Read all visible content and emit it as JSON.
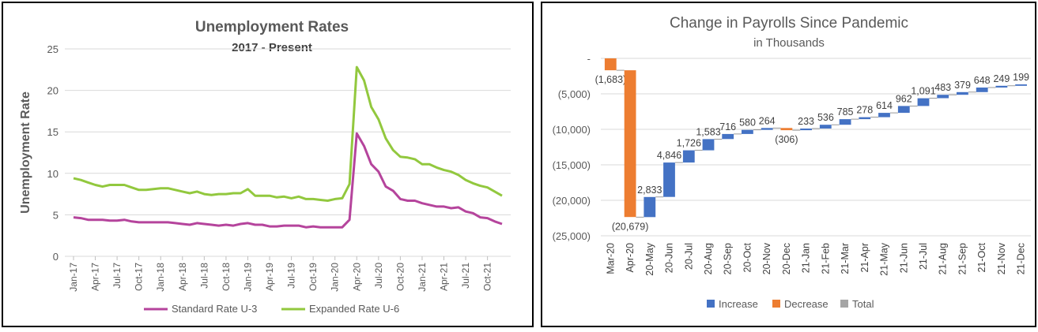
{
  "chart_data": [
    {
      "type": "line",
      "title": "Unemployment Rates",
      "subtitle": "2017 - Present",
      "ylabel": "Unemployment Rate",
      "xlabel": "",
      "ylim": [
        0,
        25
      ],
      "yticks": [
        "0",
        "5",
        "10",
        "15",
        "20",
        "25"
      ],
      "x_tick_labels": [
        "Jan-17",
        "Apr-17",
        "Jul-17",
        "Oct-17",
        "Jan-18",
        "Apr-18",
        "Jul-18",
        "Oct-18",
        "Jan-19",
        "Apr-19",
        "Jul-19",
        "Oct-19",
        "Jan-20",
        "Apr-20",
        "Jul-20",
        "Oct-20",
        "Jan-21",
        "Apr-21",
        "Jul-21",
        "Oct-21"
      ],
      "x_start": "Jan-17",
      "x_end": "Dec-21",
      "grid": true,
      "legend": "bottom",
      "series": [
        {
          "name": "Standard Rate U-3",
          "color": "#b5449c",
          "values": [
            4.7,
            4.6,
            4.4,
            4.4,
            4.4,
            4.3,
            4.3,
            4.4,
            4.2,
            4.1,
            4.1,
            4.1,
            4.1,
            4.1,
            4.0,
            3.9,
            3.8,
            4.0,
            3.9,
            3.8,
            3.7,
            3.8,
            3.7,
            3.9,
            4.0,
            3.8,
            3.8,
            3.6,
            3.6,
            3.7,
            3.7,
            3.7,
            3.5,
            3.6,
            3.5,
            3.5,
            3.5,
            3.5,
            4.4,
            14.8,
            13.3,
            11.1,
            10.2,
            8.4,
            7.9,
            6.9,
            6.7,
            6.7,
            6.4,
            6.2,
            6.0,
            6.0,
            5.8,
            5.9,
            5.4,
            5.2,
            4.7,
            4.6,
            4.2,
            3.9
          ]
        },
        {
          "name": "Expanded Rate U-6",
          "color": "#92c83e",
          "values": [
            9.4,
            9.2,
            8.9,
            8.6,
            8.4,
            8.6,
            8.6,
            8.6,
            8.3,
            8.0,
            8.0,
            8.1,
            8.2,
            8.2,
            8.0,
            7.8,
            7.6,
            7.8,
            7.5,
            7.4,
            7.5,
            7.5,
            7.6,
            7.6,
            8.1,
            7.3,
            7.3,
            7.3,
            7.1,
            7.2,
            7.0,
            7.2,
            6.9,
            6.9,
            6.8,
            6.7,
            6.9,
            7.0,
            8.7,
            22.8,
            21.2,
            18.0,
            16.5,
            14.2,
            12.8,
            12.0,
            11.9,
            11.7,
            11.1,
            11.1,
            10.7,
            10.4,
            10.2,
            9.8,
            9.2,
            8.8,
            8.5,
            8.3,
            7.8,
            7.3
          ]
        }
      ]
    },
    {
      "type": "waterfall",
      "title": "Change in Payrolls Since Pandemic",
      "subtitle": "in Thousands",
      "xlabel": "",
      "ylabel": "",
      "ylim": [
        -25000,
        0
      ],
      "yticks": [
        "-",
        "(5,000)",
        "(10,000)",
        "(15,000)",
        "(20,000)",
        "(25,000)"
      ],
      "grid": true,
      "legend": "bottom",
      "categories": [
        "Mar-20",
        "Apr-20",
        "20-May",
        "20-Jun",
        "20-Jul",
        "20-Aug",
        "20-Sep",
        "20-Oct",
        "20-Nov",
        "20-Dec",
        "21-Jan",
        "21-Feb",
        "21-Mar",
        "21-Apr",
        "21-May",
        "21-Jun",
        "21-Jul",
        "21-Aug",
        "21-Sep",
        "21-Oct",
        "21-Nov",
        "21-Dec"
      ],
      "values": [
        -1683,
        -20679,
        2833,
        4846,
        1726,
        1583,
        716,
        580,
        264,
        -306,
        233,
        536,
        785,
        278,
        614,
        962,
        1091,
        483,
        379,
        648,
        249,
        199
      ],
      "labels": [
        "(1,683)",
        "(20,679)",
        "2,833",
        "4,846",
        "1,726",
        "1,583",
        "716",
        "580",
        "264",
        "(306)",
        "233",
        "536",
        "785",
        "278",
        "614",
        "962",
        "1,091",
        "483",
        "379",
        "648",
        "249",
        "199"
      ],
      "legend_entries": [
        {
          "name": "Increase",
          "color": "#4472c4"
        },
        {
          "name": "Decrease",
          "color": "#ed7d31"
        },
        {
          "name": "Total",
          "color": "#a5a5a5"
        }
      ]
    }
  ]
}
